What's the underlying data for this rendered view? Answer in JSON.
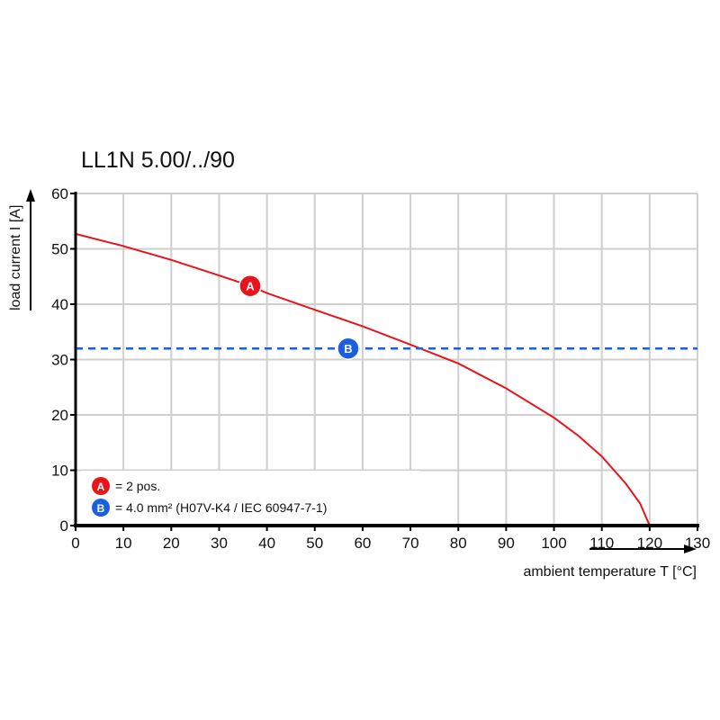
{
  "chart_data": {
    "type": "line",
    "title": "LL1N 5.00/../90",
    "xlabel": "ambient temperature T [°C]",
    "ylabel": "load current I [A]",
    "xlim": [
      0,
      130
    ],
    "ylim": [
      0,
      60
    ],
    "xticks": [
      0,
      10,
      20,
      30,
      40,
      50,
      60,
      70,
      80,
      90,
      100,
      110,
      120,
      130
    ],
    "yticks": [
      0,
      10,
      20,
      30,
      40,
      50,
      60
    ],
    "grid": true,
    "series": [
      {
        "name": "A",
        "color": "#e8141b",
        "style": "solid",
        "x": [
          0,
          10,
          20,
          30,
          36.5,
          40,
          50,
          60,
          70,
          80,
          90,
          100,
          105,
          110,
          115,
          118,
          120
        ],
        "y": [
          52.7,
          50.5,
          48,
          45.2,
          43.3,
          42,
          39,
          36,
          32.7,
          29.3,
          24.8,
          19.5,
          16.3,
          12.5,
          7.6,
          4,
          0
        ],
        "marker": {
          "label": "A",
          "x": 36.5,
          "y": 43.3
        }
      },
      {
        "name": "B",
        "color": "#1a5fe0",
        "style": "dashed",
        "x": [
          0,
          130
        ],
        "y": [
          32,
          32
        ],
        "marker": {
          "label": "B",
          "x": 57,
          "y": 32
        }
      }
    ],
    "legend": {
      "placement": "bottom-left",
      "entries": [
        {
          "badge": "A",
          "color": "#e8141b",
          "text": "= 2 pos."
        },
        {
          "badge": "B",
          "color": "#1a5fe0",
          "text": "= 4.0 mm² (H07V-K4 / IEC 60947-7-1)"
        }
      ]
    }
  }
}
